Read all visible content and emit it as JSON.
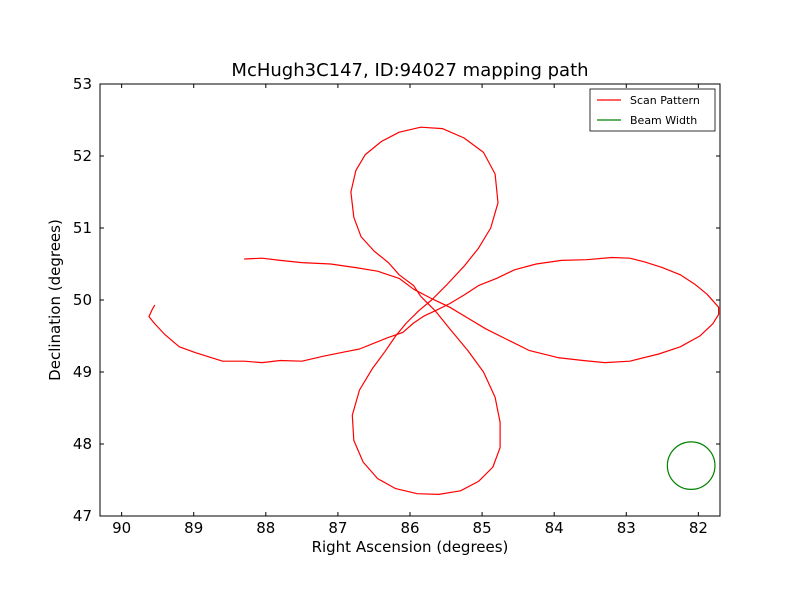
{
  "chart_data": {
    "type": "line",
    "title": "McHugh3C147, ID:94027 mapping path",
    "xlabel": "Right Ascension (degrees)",
    "ylabel": "Declination (degrees)",
    "xlim": [
      90.3,
      81.7
    ],
    "ylim": [
      47,
      53
    ],
    "x_inverted": true,
    "xticks": [
      "90",
      "89",
      "88",
      "87",
      "86",
      "85",
      "84",
      "83",
      "82"
    ],
    "yticks": [
      "47",
      "48",
      "49",
      "50",
      "51",
      "52",
      "53"
    ],
    "grid": false,
    "legend_position": "top-right",
    "series": [
      {
        "name": "Scan Pattern",
        "color": "#ff0000",
        "segments": [
          [
            [
              89.54,
              49.93
            ],
            [
              89.58,
              49.86
            ],
            [
              89.62,
              49.77
            ],
            [
              89.55,
              49.68
            ],
            [
              89.4,
              49.52
            ],
            [
              89.2,
              49.35
            ],
            [
              88.98,
              49.27
            ],
            [
              88.82,
              49.22
            ],
            [
              88.6,
              49.15
            ],
            [
              88.3,
              49.15
            ],
            [
              88.05,
              49.13
            ],
            [
              87.8,
              49.16
            ],
            [
              87.5,
              49.15
            ],
            [
              87.2,
              49.22
            ],
            [
              86.9,
              49.28
            ],
            [
              86.7,
              49.32
            ],
            [
              86.5,
              49.4
            ],
            [
              86.3,
              49.48
            ],
            [
              86.1,
              49.55
            ],
            [
              85.95,
              49.68
            ],
            [
              85.8,
              49.78
            ],
            [
              85.65,
              49.85
            ],
            [
              85.45,
              49.95
            ],
            [
              85.25,
              50.07
            ],
            [
              85.05,
              50.2
            ],
            [
              84.8,
              50.3
            ],
            [
              84.55,
              50.42
            ],
            [
              84.25,
              50.5
            ],
            [
              83.9,
              50.55
            ],
            [
              83.55,
              50.56
            ],
            [
              83.2,
              50.59
            ],
            [
              82.95,
              50.58
            ],
            [
              82.75,
              50.53
            ],
            [
              82.5,
              50.45
            ],
            [
              82.25,
              50.35
            ],
            [
              82.05,
              50.22
            ],
            [
              81.88,
              50.08
            ],
            [
              81.72,
              49.9
            ],
            [
              81.72,
              49.8
            ],
            [
              81.8,
              49.67
            ],
            [
              81.98,
              49.5
            ],
            [
              82.25,
              49.35
            ],
            [
              82.55,
              49.25
            ],
            [
              82.95,
              49.15
            ],
            [
              83.3,
              49.13
            ],
            [
              83.6,
              49.16
            ],
            [
              83.95,
              49.2
            ],
            [
              84.35,
              49.3
            ],
            [
              84.65,
              49.45
            ],
            [
              84.95,
              49.6
            ],
            [
              85.2,
              49.75
            ],
            [
              85.45,
              49.9
            ],
            [
              85.7,
              50.02
            ],
            [
              85.95,
              50.15
            ],
            [
              86.15,
              50.3
            ],
            [
              86.45,
              50.4
            ],
            [
              86.75,
              50.45
            ],
            [
              87.1,
              50.5
            ],
            [
              87.5,
              50.52
            ],
            [
              87.8,
              50.55
            ],
            [
              88.05,
              50.58
            ],
            [
              88.3,
              50.57
            ]
          ],
          [
            [
              85.85,
              50.05
            ],
            [
              85.95,
              50.2
            ],
            [
              86.15,
              50.35
            ],
            [
              86.3,
              50.52
            ],
            [
              86.5,
              50.68
            ],
            [
              86.68,
              50.88
            ],
            [
              86.78,
              51.15
            ],
            [
              86.82,
              51.5
            ],
            [
              86.75,
              51.8
            ],
            [
              86.62,
              52.02
            ],
            [
              86.4,
              52.2
            ],
            [
              86.15,
              52.33
            ],
            [
              85.85,
              52.4
            ],
            [
              85.55,
              52.38
            ],
            [
              85.25,
              52.25
            ],
            [
              84.98,
              52.05
            ],
            [
              84.82,
              51.75
            ],
            [
              84.78,
              51.35
            ],
            [
              84.88,
              51.0
            ],
            [
              85.05,
              50.72
            ],
            [
              85.25,
              50.47
            ],
            [
              85.5,
              50.2
            ],
            [
              85.7,
              50.0
            ],
            [
              85.88,
              49.85
            ],
            [
              86.05,
              49.68
            ],
            [
              86.2,
              49.5
            ],
            [
              86.35,
              49.28
            ],
            [
              86.52,
              49.05
            ],
            [
              86.7,
              48.75
            ],
            [
              86.8,
              48.4
            ],
            [
              86.78,
              48.05
            ],
            [
              86.65,
              47.75
            ],
            [
              86.45,
              47.52
            ],
            [
              86.2,
              47.38
            ],
            [
              85.9,
              47.31
            ],
            [
              85.6,
              47.3
            ],
            [
              85.3,
              47.35
            ],
            [
              85.05,
              47.48
            ],
            [
              84.85,
              47.68
            ],
            [
              84.75,
              47.95
            ],
            [
              84.75,
              48.3
            ],
            [
              84.82,
              48.65
            ],
            [
              84.98,
              49.0
            ],
            [
              85.2,
              49.3
            ],
            [
              85.45,
              49.6
            ],
            [
              85.65,
              49.85
            ],
            [
              85.85,
              50.05
            ]
          ]
        ]
      },
      {
        "name": "Beam Width",
        "color": "#008000",
        "center": [
          82.1,
          47.7
        ],
        "radius_deg": 0.33
      }
    ]
  }
}
